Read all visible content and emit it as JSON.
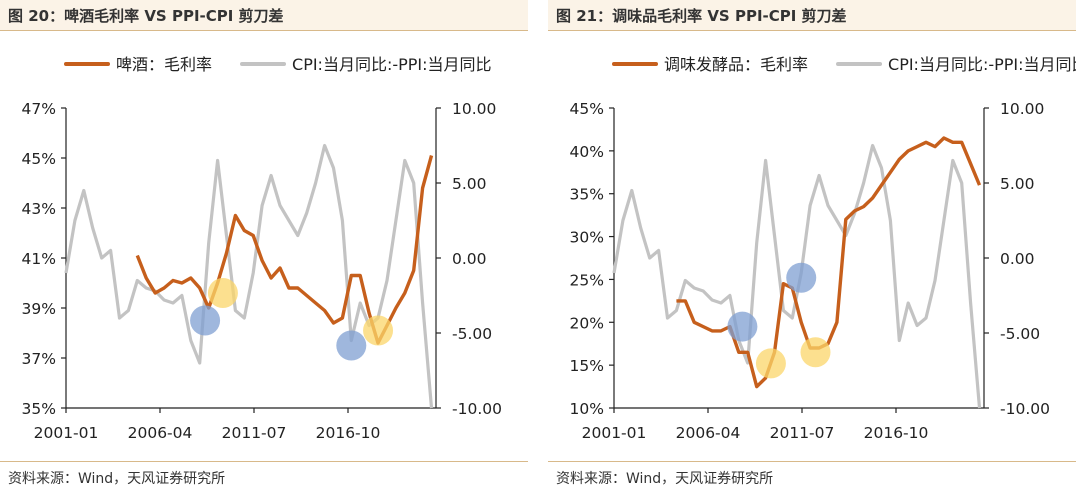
{
  "colors": {
    "orange": "#c65f1c",
    "gray": "#c3c3c3",
    "blue_marker": "#7f9fd1",
    "yellow_marker": "#fbd56a"
  },
  "charts": [
    {
      "caption": "图 20：啤酒毛利率 VS PPI-CPI 剪刀差",
      "source": "资料来源：Wind，天风证券研究所"
    },
    {
      "caption": "图 21：调味品毛利率 VS PPI-CPI 剪刀差",
      "source": "资料来源：Wind，天风证券研究所"
    }
  ],
  "chart_data": [
    {
      "type": "line",
      "title": "",
      "x_range": [
        2001.0,
        2021.75
      ],
      "x_ticks": [
        "2001-01",
        "2006-04",
        "2011-07",
        "2016-10"
      ],
      "y_left": {
        "ticks": [
          "35%",
          "37%",
          "39%",
          "41%",
          "43%",
          "45%",
          "47%"
        ],
        "range": [
          35,
          47
        ]
      },
      "y_right": {
        "ticks": [
          "-10.00",
          "-5.00",
          "0.00",
          "5.00",
          "10.00"
        ],
        "range": [
          -10,
          10
        ]
      },
      "series": [
        {
          "name": "啤酒：毛利率",
          "axis": "left",
          "color": "orange",
          "x": [
            2005.0,
            2005.5,
            2006.0,
            2006.5,
            2007.0,
            2007.5,
            2008.0,
            2008.5,
            2009.0,
            2009.5,
            2010.0,
            2010.5,
            2011.0,
            2011.5,
            2012.0,
            2012.5,
            2013.0,
            2013.5,
            2014.0,
            2014.5,
            2015.0,
            2015.5,
            2016.0,
            2016.5,
            2017.0,
            2017.5,
            2018.0,
            2018.5,
            2019.0,
            2019.5,
            2020.0,
            2020.5,
            2021.0,
            2021.5
          ],
          "y": [
            41.1,
            40.2,
            39.6,
            39.8,
            40.1,
            40.0,
            40.2,
            39.8,
            39.0,
            40.0,
            41.2,
            42.7,
            42.1,
            41.9,
            40.9,
            40.2,
            40.6,
            39.8,
            39.8,
            39.5,
            39.2,
            38.9,
            38.4,
            38.6,
            40.3,
            40.3,
            38.8,
            37.6,
            38.3,
            39.0,
            39.6,
            40.5,
            43.8,
            45.1
          ]
        },
        {
          "name": "CPI:当月同比:-PPI:当月同比",
          "axis": "right",
          "color": "gray",
          "x": [
            2001.0,
            2001.5,
            2002.0,
            2002.5,
            2003.0,
            2003.5,
            2004.0,
            2004.5,
            2005.0,
            2005.5,
            2006.0,
            2006.5,
            2007.0,
            2007.5,
            2008.0,
            2008.5,
            2009.0,
            2009.5,
            2010.0,
            2010.5,
            2011.0,
            2011.5,
            2012.0,
            2012.5,
            2013.0,
            2013.5,
            2014.0,
            2014.5,
            2015.0,
            2015.5,
            2016.0,
            2016.5,
            2017.0,
            2017.5,
            2018.0,
            2018.5,
            2019.0,
            2019.5,
            2020.0,
            2020.5,
            2021.0,
            2021.5
          ],
          "y": [
            -1.0,
            2.5,
            4.5,
            2.0,
            0.0,
            0.5,
            -4.0,
            -3.5,
            -1.5,
            -2.0,
            -2.2,
            -2.8,
            -3.0,
            -2.5,
            -5.5,
            -7.0,
            1.0,
            6.5,
            1.5,
            -3.5,
            -4.0,
            -1.0,
            3.5,
            5.5,
            3.5,
            2.5,
            1.5,
            3.0,
            5.0,
            7.5,
            6.0,
            2.5,
            -5.5,
            -3.0,
            -4.5,
            -4.0,
            -1.5,
            2.5,
            6.5,
            5.0,
            -3.0,
            -10.0
          ]
        }
      ],
      "markers": [
        {
          "color": "blue_marker",
          "x": 2008.8,
          "y_left": 38.5
        },
        {
          "color": "yellow_marker",
          "x": 2009.8,
          "y_left": 39.6
        },
        {
          "color": "blue_marker",
          "x": 2017.0,
          "y_left": 37.5
        },
        {
          "color": "yellow_marker",
          "x": 2018.5,
          "y_left": 38.1
        }
      ]
    },
    {
      "type": "line",
      "title": "",
      "x_range": [
        2001.0,
        2021.75
      ],
      "x_ticks": [
        "2001-01",
        "2006-04",
        "2011-07",
        "2016-10"
      ],
      "y_left": {
        "ticks": [
          "10%",
          "15%",
          "20%",
          "25%",
          "30%",
          "35%",
          "40%",
          "45%"
        ],
        "range": [
          10,
          45
        ]
      },
      "y_right": {
        "ticks": [
          "-10.00",
          "-5.00",
          "0.00",
          "5.00",
          "10.00"
        ],
        "range": [
          -10,
          10
        ]
      },
      "series": [
        {
          "name": "调味发酵品：毛利率",
          "axis": "left",
          "color": "orange",
          "x": [
            2004.5,
            2005.0,
            2005.5,
            2006.0,
            2006.5,
            2007.0,
            2007.5,
            2008.0,
            2008.5,
            2009.0,
            2009.5,
            2010.0,
            2010.5,
            2011.0,
            2011.5,
            2012.0,
            2012.5,
            2013.0,
            2013.5,
            2014.0,
            2014.5,
            2015.0,
            2015.5,
            2016.0,
            2016.5,
            2017.0,
            2017.5,
            2018.0,
            2018.5,
            2019.0,
            2019.5,
            2020.0,
            2020.5,
            2021.0,
            2021.5
          ],
          "y": [
            22.5,
            22.5,
            20.0,
            19.5,
            19.0,
            19.0,
            19.5,
            16.5,
            16.5,
            12.5,
            13.5,
            16.5,
            24.5,
            24.0,
            20.0,
            17.0,
            17.0,
            17.5,
            20.0,
            32.0,
            33.0,
            33.5,
            34.5,
            36.0,
            37.5,
            39.0,
            40.0,
            40.5,
            41.0,
            40.5,
            41.5,
            41.0,
            41.0,
            38.5,
            36.0
          ]
        },
        {
          "name": "CPI:当月同比:-PPI:当月同比",
          "axis": "right",
          "color": "gray",
          "x": [
            2001.0,
            2001.5,
            2002.0,
            2002.5,
            2003.0,
            2003.5,
            2004.0,
            2004.5,
            2005.0,
            2005.5,
            2006.0,
            2006.5,
            2007.0,
            2007.5,
            2008.0,
            2008.5,
            2009.0,
            2009.5,
            2010.0,
            2010.5,
            2011.0,
            2011.5,
            2012.0,
            2012.5,
            2013.0,
            2013.5,
            2014.0,
            2014.5,
            2015.0,
            2015.5,
            2016.0,
            2016.5,
            2017.0,
            2017.5,
            2018.0,
            2018.5,
            2019.0,
            2019.5,
            2020.0,
            2020.5,
            2021.0,
            2021.5
          ],
          "y": [
            -1.0,
            2.5,
            4.5,
            2.0,
            0.0,
            0.5,
            -4.0,
            -3.5,
            -1.5,
            -2.0,
            -2.2,
            -2.8,
            -3.0,
            -2.5,
            -5.5,
            -7.0,
            1.0,
            6.5,
            1.5,
            -3.5,
            -4.0,
            -1.0,
            3.5,
            5.5,
            3.5,
            2.5,
            1.5,
            3.0,
            5.0,
            7.5,
            6.0,
            2.5,
            -5.5,
            -3.0,
            -4.5,
            -4.0,
            -1.5,
            2.5,
            6.5,
            5.0,
            -3.0,
            -10.0
          ]
        }
      ],
      "markers": [
        {
          "color": "blue_marker",
          "x": 2008.2,
          "y_left": 19.5
        },
        {
          "color": "yellow_marker",
          "x": 2009.8,
          "y_left": 15.2
        },
        {
          "color": "blue_marker",
          "x": 2011.5,
          "y_left": 25.2
        },
        {
          "color": "yellow_marker",
          "x": 2012.3,
          "y_left": 16.5
        }
      ]
    }
  ]
}
